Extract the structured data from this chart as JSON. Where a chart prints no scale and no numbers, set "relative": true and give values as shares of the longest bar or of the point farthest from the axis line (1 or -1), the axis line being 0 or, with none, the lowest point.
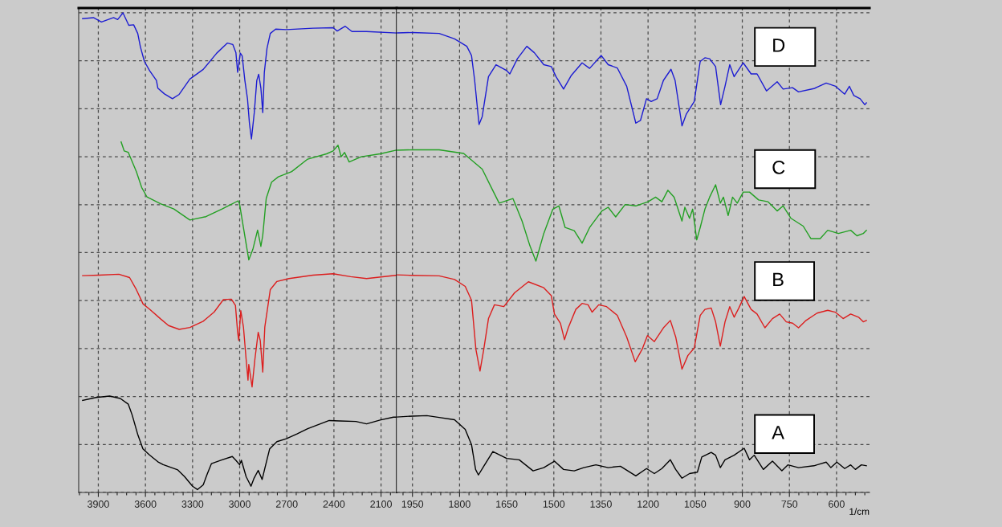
{
  "chart_data": [
    {
      "type": "line",
      "relative": true,
      "grid": true,
      "tick_labels": "x",
      "xlim": [
        4025,
        2000
      ],
      "xticks": [
        3900,
        3600,
        3300,
        3000,
        2700,
        2400,
        2100
      ],
      "ref_lines": [
        {
          "axis": "x",
          "value": 2000,
          "color": "#000000"
        }
      ],
      "series": [
        {
          "color": "#1c1cd2",
          "x": [
            4000,
            3931,
            3880,
            3803,
            3777,
            3743,
            3706,
            3675,
            3649,
            3632,
            3607,
            3573,
            3530,
            3521,
            3479,
            3428,
            3385,
            3317,
            3232,
            3146,
            3078,
            3044,
            3024,
            3013,
            2996,
            2984,
            2967,
            2950,
            2938,
            2925,
            2907,
            2891,
            2879,
            2865,
            2853,
            2843,
            2826,
            2805,
            2771,
            2703,
            2533,
            2405,
            2379,
            2328,
            2285,
            2192,
            2000
          ],
          "values": [
            0.988,
            0.99,
            0.981,
            0.99,
            0.986,
            1.0,
            0.974,
            0.975,
            0.957,
            0.929,
            0.899,
            0.879,
            0.859,
            0.843,
            0.831,
            0.821,
            0.83,
            0.862,
            0.882,
            0.916,
            0.937,
            0.934,
            0.917,
            0.876,
            0.916,
            0.91,
            0.859,
            0.82,
            0.77,
            0.737,
            0.792,
            0.859,
            0.872,
            0.843,
            0.792,
            0.876,
            0.926,
            0.957,
            0.966,
            0.965,
            0.968,
            0.969,
            0.962,
            0.972,
            0.961,
            0.961,
            0.958
          ]
        },
        {
          "color": "#23a023",
          "x": [
            3755,
            3735,
            3709,
            3658,
            3624,
            3590,
            3504,
            3419,
            3317,
            3215,
            3112,
            3010,
            3001,
            2976,
            2942,
            2916,
            2886,
            2865,
            2853,
            2831,
            2797,
            2754,
            2669,
            2567,
            2447,
            2405,
            2374,
            2354,
            2332,
            2303,
            2226,
            2106,
            2000
          ],
          "values": [
            0.731,
            0.712,
            0.709,
            0.669,
            0.636,
            0.616,
            0.602,
            0.591,
            0.568,
            0.575,
            0.591,
            0.608,
            0.602,
            0.552,
            0.485,
            0.507,
            0.547,
            0.513,
            0.536,
            0.613,
            0.647,
            0.658,
            0.669,
            0.695,
            0.706,
            0.712,
            0.724,
            0.7,
            0.709,
            0.689,
            0.7,
            0.706,
            0.714
          ]
        },
        {
          "color": "#dc1e1e",
          "x": [
            4000,
            3897,
            3769,
            3701,
            3658,
            3615,
            3573,
            3504,
            3453,
            3385,
            3317,
            3232,
            3163,
            3104,
            3053,
            3027,
            3013,
            3006,
            2993,
            2976,
            2959,
            2947,
            2942,
            2921,
            2903,
            2882,
            2869,
            2853,
            2840,
            2805,
            2763,
            2686,
            2533,
            2405,
            2294,
            2192,
            2000
          ],
          "values": [
            0.452,
            0.453,
            0.455,
            0.448,
            0.423,
            0.393,
            0.382,
            0.362,
            0.348,
            0.34,
            0.344,
            0.357,
            0.376,
            0.402,
            0.403,
            0.39,
            0.334,
            0.317,
            0.379,
            0.345,
            0.278,
            0.234,
            0.267,
            0.22,
            0.278,
            0.334,
            0.317,
            0.251,
            0.345,
            0.423,
            0.44,
            0.446,
            0.453,
            0.456,
            0.45,
            0.446,
            0.453
          ]
        },
        {
          "color": "#000000",
          "x": [
            4000,
            3914,
            3828,
            3760,
            3709,
            3684,
            3650,
            3616,
            3573,
            3521,
            3487,
            3394,
            3351,
            3300,
            3269,
            3232,
            3206,
            3180,
            3112,
            3047,
            3024,
            3001,
            2989,
            2959,
            2928,
            2908,
            2882,
            2857,
            2840,
            2809,
            2763,
            2703,
            2635,
            2567,
            2430,
            2362,
            2260,
            2192,
            2106,
            2021,
            2000
          ],
          "values": [
            0.192,
            0.198,
            0.201,
            0.196,
            0.184,
            0.161,
            0.122,
            0.091,
            0.078,
            0.064,
            0.058,
            0.047,
            0.033,
            0.013,
            0.006,
            0.016,
            0.039,
            0.06,
            0.068,
            0.075,
            0.067,
            0.058,
            0.067,
            0.033,
            0.013,
            0.03,
            0.046,
            0.027,
            0.05,
            0.091,
            0.106,
            0.112,
            0.122,
            0.133,
            0.15,
            0.149,
            0.148,
            0.143,
            0.151,
            0.157,
            0.157
          ]
        }
      ]
    },
    {
      "type": "line",
      "relative": true,
      "grid": true,
      "tick_labels": "x",
      "xlabel": "1/cm",
      "xlim": [
        2000,
        495
      ],
      "xticks": [
        1950,
        1800,
        1650,
        1500,
        1350,
        1200,
        1050,
        900,
        750,
        600
      ],
      "series": [
        {
          "name": "D",
          "color": "#1c1cd2",
          "x": [
            2000,
            1950,
            1865,
            1816,
            1777,
            1762,
            1752,
            1738,
            1728,
            1708,
            1684,
            1650,
            1640,
            1616,
            1586,
            1562,
            1532,
            1508,
            1493,
            1469,
            1444,
            1410,
            1386,
            1349,
            1327,
            1298,
            1268,
            1239,
            1224,
            1205,
            1190,
            1171,
            1151,
            1127,
            1114,
            1092,
            1078,
            1053,
            1034,
            1019,
            1004,
            985,
            969,
            955,
            940,
            926,
            897,
            872,
            853,
            823,
            789,
            770,
            740,
            721,
            672,
            633,
            603,
            574,
            559,
            545,
            525,
            510,
            505
          ],
          "values": [
            0.999,
            1.0,
            0.998,
            0.986,
            0.97,
            0.95,
            0.896,
            0.8,
            0.817,
            0.904,
            0.93,
            0.917,
            0.91,
            0.943,
            0.97,
            0.956,
            0.93,
            0.926,
            0.904,
            0.877,
            0.907,
            0.934,
            0.922,
            0.95,
            0.93,
            0.923,
            0.883,
            0.803,
            0.809,
            0.856,
            0.85,
            0.856,
            0.896,
            0.92,
            0.896,
            0.797,
            0.823,
            0.85,
            0.937,
            0.945,
            0.943,
            0.926,
            0.843,
            0.883,
            0.93,
            0.904,
            0.934,
            0.91,
            0.91,
            0.873,
            0.893,
            0.877,
            0.88,
            0.871,
            0.878,
            0.89,
            0.883,
            0.866,
            0.883,
            0.863,
            0.856,
            0.843,
            0.847
          ]
        },
        {
          "name": "C",
          "color": "#23a023",
          "x": [
            2000,
            1950,
            1865,
            1787,
            1728,
            1699,
            1674,
            1630,
            1601,
            1576,
            1557,
            1532,
            1503,
            1484,
            1464,
            1435,
            1410,
            1386,
            1347,
            1327,
            1303,
            1273,
            1239,
            1200,
            1176,
            1156,
            1137,
            1117,
            1092,
            1083,
            1068,
            1058,
            1045,
            1034,
            1019,
            1004,
            985,
            970,
            960,
            945,
            931,
            916,
            897,
            877,
            848,
            818,
            789,
            770,
            745,
            706,
            682,
            652,
            628,
            594,
            555,
            535,
            515,
            505
          ],
          "values": [
            0.744,
            0.745,
            0.745,
            0.737,
            0.703,
            0.663,
            0.629,
            0.639,
            0.59,
            0.536,
            0.503,
            0.563,
            0.616,
            0.623,
            0.576,
            0.569,
            0.542,
            0.576,
            0.612,
            0.62,
            0.599,
            0.626,
            0.623,
            0.632,
            0.642,
            0.632,
            0.657,
            0.642,
            0.59,
            0.62,
            0.596,
            0.616,
            0.549,
            0.576,
            0.616,
            0.642,
            0.669,
            0.629,
            0.642,
            0.602,
            0.642,
            0.629,
            0.653,
            0.653,
            0.636,
            0.632,
            0.612,
            0.623,
            0.596,
            0.579,
            0.552,
            0.552,
            0.57,
            0.563,
            0.57,
            0.558,
            0.563,
            0.57
          ]
        },
        {
          "name": "B",
          "color": "#dc1e1e",
          "x": [
            2000,
            1950,
            1865,
            1816,
            1782,
            1762,
            1748,
            1735,
            1723,
            1708,
            1689,
            1659,
            1625,
            1581,
            1532,
            1508,
            1498,
            1479,
            1466,
            1454,
            1430,
            1410,
            1391,
            1378,
            1357,
            1332,
            1298,
            1268,
            1241,
            1219,
            1202,
            1180,
            1151,
            1129,
            1112,
            1092,
            1073,
            1053,
            1034,
            1019,
            999,
            985,
            970,
            955,
            940,
            926,
            911,
            894,
            872,
            853,
            828,
            804,
            781,
            760,
            740,
            721,
            697,
            662,
            628,
            604,
            579,
            555,
            530,
            515,
            505
          ],
          "values": [
            0.473,
            0.472,
            0.471,
            0.463,
            0.448,
            0.418,
            0.311,
            0.264,
            0.311,
            0.378,
            0.408,
            0.404,
            0.434,
            0.458,
            0.445,
            0.428,
            0.388,
            0.368,
            0.332,
            0.358,
            0.398,
            0.411,
            0.408,
            0.392,
            0.408,
            0.404,
            0.385,
            0.338,
            0.284,
            0.311,
            0.341,
            0.328,
            0.358,
            0.374,
            0.338,
            0.268,
            0.298,
            0.314,
            0.385,
            0.398,
            0.401,
            0.371,
            0.318,
            0.371,
            0.404,
            0.381,
            0.401,
            0.426,
            0.398,
            0.388,
            0.358,
            0.378,
            0.388,
            0.371,
            0.368,
            0.358,
            0.374,
            0.39,
            0.396,
            0.392,
            0.378,
            0.388,
            0.381,
            0.371,
            0.374
          ]
        },
        {
          "name": "A",
          "color": "#000000",
          "x": [
            2000,
            1950,
            1904,
            1865,
            1816,
            1782,
            1762,
            1749,
            1740,
            1723,
            1694,
            1650,
            1610,
            1566,
            1532,
            1498,
            1469,
            1435,
            1405,
            1366,
            1327,
            1288,
            1239,
            1205,
            1180,
            1156,
            1129,
            1112,
            1092,
            1068,
            1043,
            1029,
            999,
            985,
            970,
            955,
            926,
            894,
            877,
            862,
            833,
            804,
            774,
            755,
            721,
            672,
            633,
            618,
            599,
            574,
            555,
            540,
            521,
            505
          ],
          "values": [
            0.164,
            0.166,
            0.167,
            0.163,
            0.158,
            0.137,
            0.104,
            0.05,
            0.038,
            0.057,
            0.089,
            0.074,
            0.071,
            0.047,
            0.054,
            0.068,
            0.05,
            0.047,
            0.054,
            0.06,
            0.054,
            0.057,
            0.036,
            0.052,
            0.041,
            0.052,
            0.071,
            0.05,
            0.031,
            0.041,
            0.044,
            0.077,
            0.087,
            0.081,
            0.054,
            0.071,
            0.081,
            0.096,
            0.071,
            0.081,
            0.05,
            0.068,
            0.047,
            0.06,
            0.054,
            0.058,
            0.066,
            0.054,
            0.066,
            0.052,
            0.06,
            0.05,
            0.06,
            0.058
          ]
        }
      ]
    }
  ]
}
